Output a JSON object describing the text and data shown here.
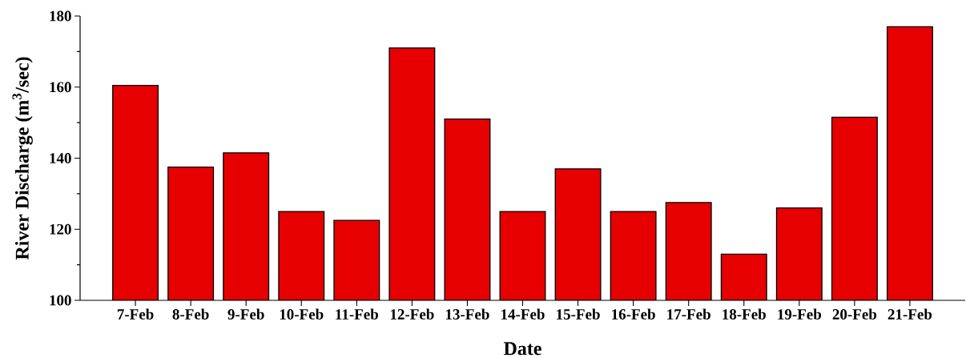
{
  "chart_data": {
    "type": "bar",
    "xlabel": "Date",
    "ylabel": "River Discharge (m$^{3}$/sec)",
    "categories": [
      "7-Feb",
      "8-Feb",
      "9-Feb",
      "10-Feb",
      "11-Feb",
      "12-Feb",
      "13-Feb",
      "14-Feb",
      "15-Feb",
      "16-Feb",
      "17-Feb",
      "18-Feb",
      "19-Feb",
      "20-Feb",
      "21-Feb"
    ],
    "values": [
      160.5,
      137.5,
      141.5,
      125,
      122.5,
      171,
      151,
      125,
      137,
      125,
      127.5,
      113,
      126,
      151.5,
      177
    ],
    "color": "#e60000",
    "ylim": [
      100,
      180
    ],
    "yticks": [
      100,
      {
        "value": 110,
        "label": null
      },
      120,
      {
        "value": 130,
        "label": null
      },
      140,
      {
        "value": 150,
        "label": null
      },
      160,
      {
        "value": 170,
        "label": null
      },
      180
    ]
  }
}
